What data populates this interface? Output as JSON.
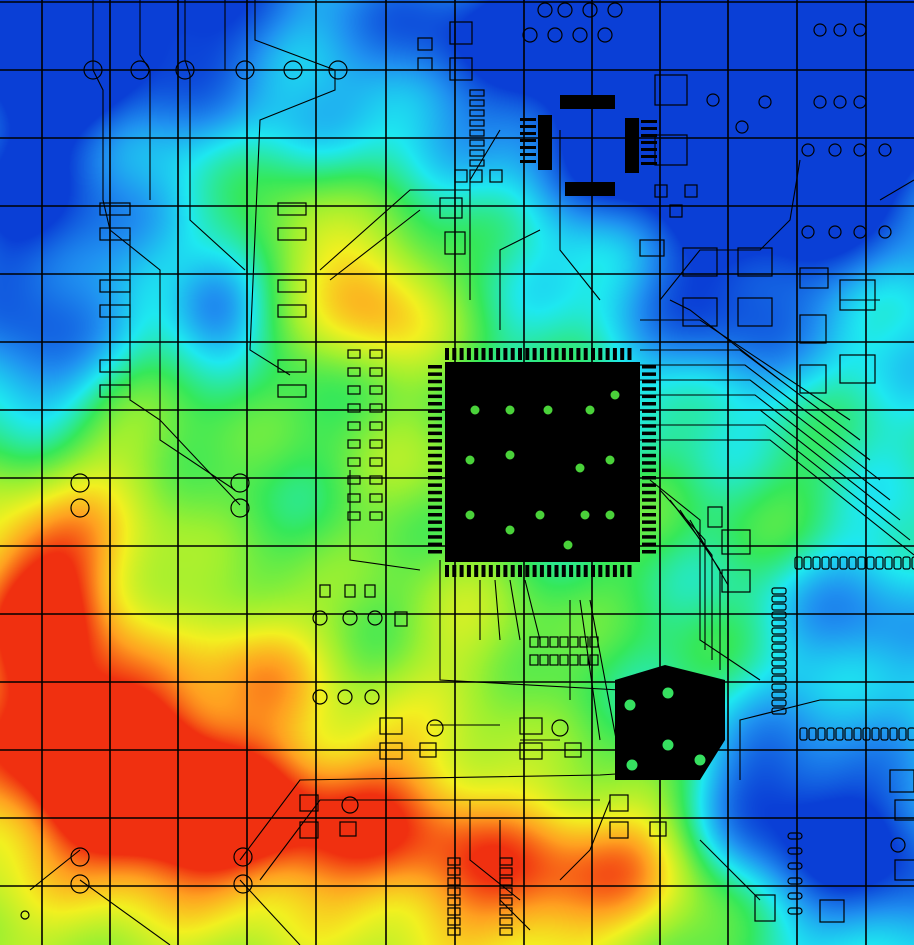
{
  "image": {
    "subject": "pcb-layout-with-thermal-heatmap-overlay",
    "grid": {
      "columns": 13,
      "rows": 14,
      "line_color": "#000000"
    },
    "heatmap_palette": [
      "#0a3fd6",
      "#1f8ff0",
      "#1ee8f0",
      "#35e85a",
      "#9ef030",
      "#f2f020",
      "#ffa020",
      "#f03010"
    ],
    "trace_color": "#000000",
    "chip_fill": "#000000"
  }
}
